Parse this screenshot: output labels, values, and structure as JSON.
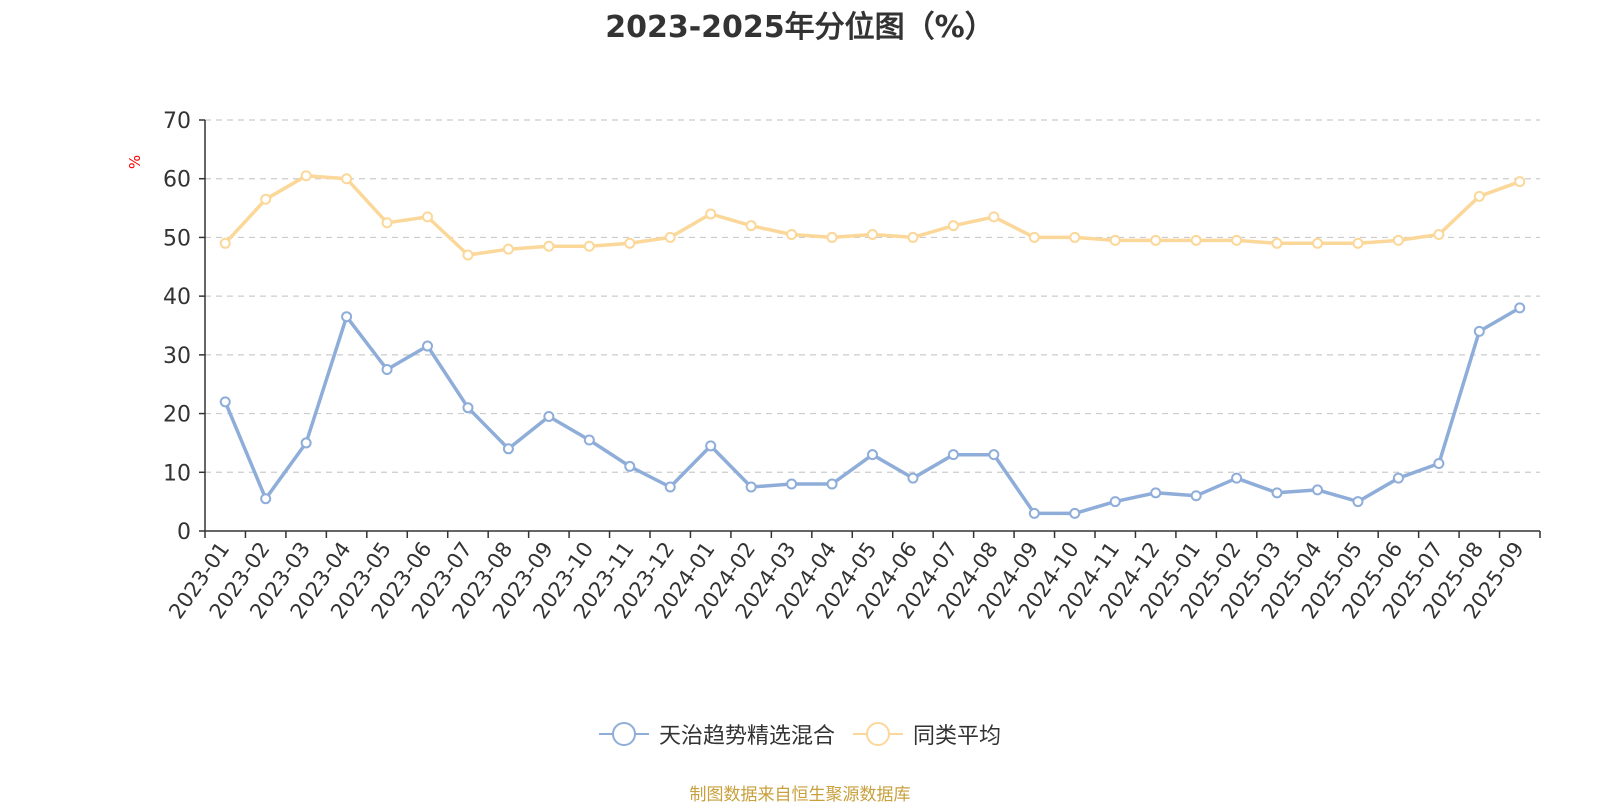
{
  "colors": {
    "fund": "#8eadd9",
    "avg": "#fbd89a",
    "unit": "#ff0000",
    "source": "#c8a03c",
    "grid": "#cccccc",
    "axis": "#333333"
  },
  "icons": {
    "legend_marker": "hollow-circle-icon"
  },
  "chart_data": {
    "type": "line",
    "title": "2023-2025年分位图（%）",
    "ylabel": "%",
    "xlabel": "",
    "ylim": [
      0,
      70
    ],
    "yticks": [
      "0",
      "10",
      "20",
      "30",
      "40",
      "50",
      "60",
      "70"
    ],
    "grid": true,
    "legend_position": "bottom-center",
    "categories": [
      "2023-01",
      "2023-02",
      "2023-03",
      "2023-04",
      "2023-05",
      "2023-06",
      "2023-07",
      "2023-08",
      "2023-09",
      "2023-10",
      "2023-11",
      "2023-12",
      "2024-01",
      "2024-02",
      "2024-03",
      "2024-04",
      "2024-05",
      "2024-06",
      "2024-07",
      "2024-08",
      "2024-09",
      "2024-10",
      "2024-11",
      "2024-12",
      "2025-01",
      "2025-02",
      "2025-03",
      "2025-04",
      "2025-05",
      "2025-06",
      "2025-07",
      "2025-08",
      "2025-09"
    ],
    "series": [
      {
        "name": "天治趋势精选混合",
        "values": [
          22.0,
          5.5,
          15.0,
          36.5,
          27.5,
          31.5,
          21.0,
          14.0,
          19.5,
          15.5,
          11.0,
          7.5,
          14.5,
          7.5,
          8.0,
          8.0,
          13.0,
          9.0,
          13.0,
          13.0,
          3.0,
          3.0,
          5.0,
          6.5,
          6.0,
          9.0,
          6.5,
          7.0,
          5.0,
          9.0,
          11.5,
          34.0,
          38.0
        ]
      },
      {
        "name": "同类平均",
        "values": [
          49.0,
          56.5,
          60.5,
          60.0,
          52.5,
          53.5,
          47.0,
          48.0,
          48.5,
          48.5,
          49.0,
          50.0,
          54.0,
          52.0,
          50.5,
          50.0,
          50.5,
          50.0,
          52.0,
          53.5,
          50.0,
          50.0,
          49.5,
          49.5,
          49.5,
          49.5,
          49.0,
          49.0,
          49.0,
          49.5,
          50.5,
          57.0,
          59.5
        ]
      }
    ]
  },
  "footer": {
    "source": "制图数据来自恒生聚源数据库"
  }
}
